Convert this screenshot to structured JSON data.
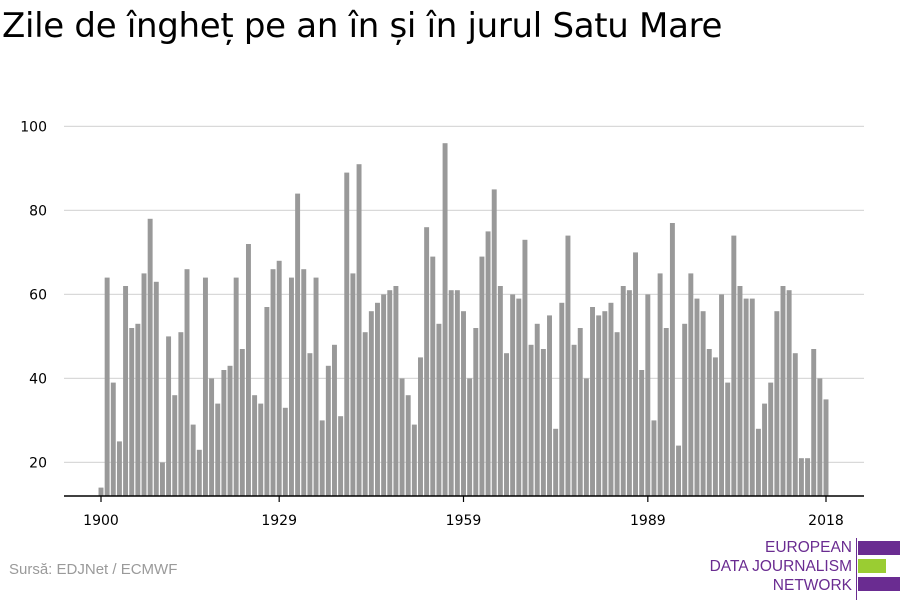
{
  "title": "Zile de îngheț pe an în și în jurul Satu Mare",
  "source": "Sursă: EDJNet / ECMWF",
  "logo": {
    "lines": [
      "EUROPEAN",
      "DATA JOURNALISM",
      "NETWORK"
    ],
    "colors": [
      "#6a2c91",
      "#9acd32",
      "#6a2c91"
    ]
  },
  "colors": {
    "bar": "#999999",
    "grid": "#d9d9d9",
    "axis": "#000000"
  },
  "chart_data": {
    "type": "bar",
    "x_start": 1900,
    "x_end": 2018,
    "xticks": [
      1900,
      1929,
      1959,
      1989,
      2018
    ],
    "yticks": [
      20,
      40,
      60,
      80,
      100
    ],
    "ylim": [
      12,
      102
    ],
    "grid": true,
    "values": [
      14,
      64,
      39,
      25,
      62,
      52,
      53,
      65,
      78,
      63,
      20,
      50,
      36,
      51,
      66,
      29,
      23,
      64,
      40,
      34,
      42,
      43,
      64,
      47,
      72,
      36,
      34,
      57,
      66,
      68,
      33,
      64,
      84,
      66,
      46,
      64,
      30,
      43,
      48,
      31,
      89,
      65,
      91,
      51,
      56,
      58,
      60,
      61,
      62,
      40,
      36,
      29,
      45,
      76,
      69,
      53,
      96,
      61,
      61,
      56,
      40,
      52,
      69,
      75,
      85,
      62,
      46,
      60,
      59,
      73,
      48,
      53,
      47,
      55,
      28,
      58,
      74,
      48,
      52,
      40,
      57,
      55,
      56,
      58,
      51,
      62,
      61,
      70,
      42,
      60,
      30,
      65,
      52,
      77,
      24,
      53,
      65,
      59,
      56,
      47,
      45,
      60,
      39,
      74,
      62,
      59,
      59,
      28,
      34,
      39,
      56,
      62,
      61,
      46,
      21,
      21,
      47,
      40,
      35
    ]
  }
}
